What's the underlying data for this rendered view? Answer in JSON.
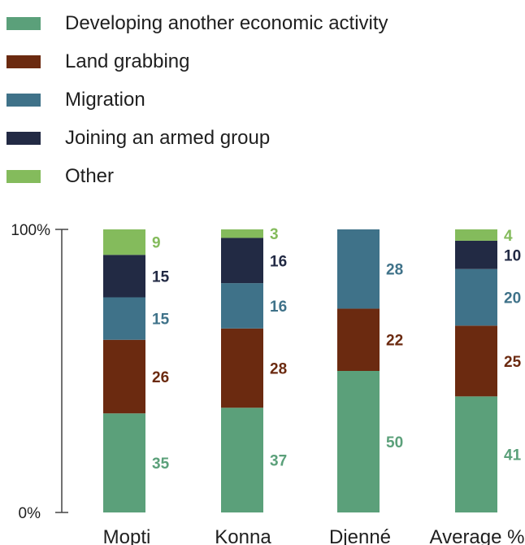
{
  "chart_data": {
    "type": "bar",
    "stacked": true,
    "categories": [
      "Mopti",
      "Konna",
      "Djenné",
      "Average %"
    ],
    "series": [
      {
        "name": "Developing another economic activity",
        "color": "#5ba07a",
        "values": [
          35,
          37,
          50,
          41
        ]
      },
      {
        "name": "Land grabbing",
        "color": "#6b2a10",
        "values": [
          26,
          28,
          22,
          25
        ]
      },
      {
        "name": "Migration",
        "color": "#3f7289",
        "values": [
          15,
          16,
          28,
          20
        ]
      },
      {
        "name": "Joining an armed group",
        "color": "#222a44",
        "values": [
          15,
          16,
          null,
          10
        ]
      },
      {
        "name": "Other",
        "color": "#84bb5c",
        "values": [
          9,
          3,
          null,
          4
        ]
      }
    ],
    "y_tick_labels": [
      "100%",
      "0%"
    ],
    "ylim": [
      0,
      100
    ],
    "legend_position": "top-left",
    "grid": false
  }
}
